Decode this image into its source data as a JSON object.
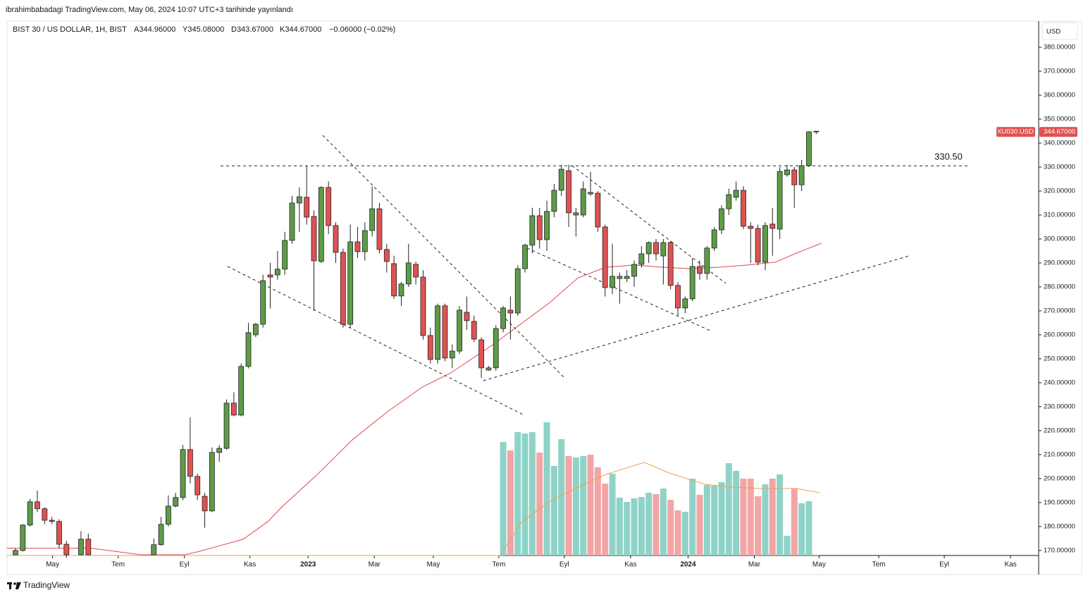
{
  "header": {
    "published": "ibrahimbabadagi TradingView.com, May 06, 2024 10:07 UTC+3 tarihinde yayınlandı",
    "symbol": "BIST 30 / US DOLLAR, 1H, BIST",
    "open_label": "A344.96000",
    "high_label": "Y345.08000",
    "low_label": "D343.67000",
    "close_label": "K344.67000",
    "change_label": "−0.06000 (−0.02%)",
    "currency": "USD"
  },
  "footer_brand": "TradingView",
  "chart_data": {
    "type": "candlestick",
    "up_color": "#5e9b47",
    "down_color": "#e05252",
    "wick_color": "#222222",
    "x": [
      0,
      1,
      2,
      3,
      4,
      5,
      6,
      7,
      9,
      10,
      19,
      20,
      21,
      22,
      23,
      24,
      25,
      26,
      27,
      28,
      29,
      30,
      31,
      32,
      33,
      34,
      35,
      36,
      37,
      38,
      39,
      40,
      41,
      42,
      43,
      44,
      45,
      46,
      47,
      48,
      49,
      50,
      51,
      52,
      53,
      54,
      55,
      56,
      57,
      58,
      59,
      60,
      61,
      62,
      63,
      64,
      65,
      66,
      67,
      68,
      69,
      70,
      71,
      72,
      73,
      74,
      75,
      76,
      77,
      78,
      79,
      80,
      81,
      82,
      83,
      84,
      85,
      86,
      87,
      88,
      89,
      90,
      91,
      92,
      93,
      94,
      95,
      96,
      97,
      98,
      99,
      100,
      101,
      102,
      103,
      104,
      105,
      106,
      107,
      108,
      109,
      110
    ],
    "open": [
      168.2,
      170,
      180.6,
      190.3,
      187.4,
      182.6,
      182.1,
      172.6,
      168.2,
      174.7,
      168.2,
      172.4,
      180.9,
      188.5,
      192.1,
      212.1,
      200.9,
      192.6,
      186.5,
      210.9,
      212.6,
      231.5,
      226.5,
      246.8,
      260,
      264.4,
      285,
      285,
      287.4,
      299.4,
      315,
      317.4,
      309.4,
      290.6,
      321.5,
      305.6,
      294.4,
      264.4,
      298.8,
      294.7,
      303.5,
      312.6,
      295.6,
      289.7,
      276.2,
      281.2,
      289.4,
      284.1,
      259.7,
      249.7,
      272.1,
      250.3,
      253.2,
      269.4,
      265.6,
      257.9,
      245.3,
      246.2,
      262.6,
      270.3,
      269.1,
      287.6,
      297.4,
      309.7,
      299.7,
      311.5,
      320.3,
      328.5,
      310,
      310,
      319.4,
      319.1,
      305,
      279.7,
      283.5,
      283.5,
      284.4,
      289.4,
      293.8,
      298.5,
      292.9,
      298.5,
      280.6,
      271.2,
      275,
      288.5,
      285.6,
      296.2,
      303.8,
      312.6,
      317.4,
      320.3,
      305.3,
      304.4,
      290.3,
      306.2,
      304.1,
      326.8,
      328.8,
      322.6,
      330.6,
      344.96
    ],
    "high": [
      171,
      181,
      191.5,
      195,
      188,
      184,
      183,
      174,
      178,
      177,
      175,
      184,
      193,
      194,
      214,
      225.5,
      202,
      194,
      213,
      214,
      233,
      236,
      248,
      265,
      265,
      285,
      290,
      295,
      303,
      318,
      321.5,
      330.6,
      312,
      322,
      324,
      307,
      296,
      306,
      305,
      307,
      322,
      315,
      298,
      293,
      282,
      298,
      290.5,
      287,
      263,
      273,
      273,
      256,
      272,
      276,
      268,
      259,
      247,
      264,
      272,
      276,
      289,
      298,
      313,
      313,
      316,
      323,
      331,
      331,
      313,
      324,
      328,
      320,
      306,
      298,
      286,
      287,
      291,
      297,
      299,
      300,
      300,
      299,
      282,
      276,
      292,
      291,
      297,
      305,
      314,
      321,
      324,
      322,
      307,
      306,
      307,
      313,
      330,
      331,
      330,
      333,
      345,
      345.08
    ],
    "low": [
      168,
      169.5,
      180,
      186,
      181,
      181,
      171,
      167,
      168,
      168,
      168,
      172,
      180,
      188,
      191,
      198,
      191,
      179.5,
      186,
      207,
      212,
      226,
      226,
      246,
      259,
      263,
      271,
      283,
      285,
      298,
      303,
      306,
      270,
      290,
      302,
      290,
      263,
      263,
      292,
      291,
      301,
      294,
      286,
      275,
      272,
      280,
      281,
      258,
      248,
      248,
      249,
      246,
      252,
      262,
      257,
      242,
      245,
      245,
      261,
      258,
      268,
      286,
      294,
      296,
      295,
      309,
      318,
      305,
      301,
      309,
      318,
      303,
      276,
      277,
      273,
      282,
      280,
      288,
      290,
      291,
      281,
      279,
      268,
      269,
      274,
      283,
      283,
      295,
      302,
      310,
      316,
      304,
      290,
      289,
      287,
      293,
      300,
      326,
      313,
      320,
      330,
      343.67
    ],
    "close": [
      170,
      180.6,
      190.3,
      187.4,
      182.6,
      182.1,
      172.6,
      168.2,
      174.7,
      168.2,
      172.4,
      180.9,
      188.5,
      192.1,
      212.1,
      200.9,
      193.2,
      186.5,
      210.9,
      212.6,
      231.5,
      226.5,
      246.8,
      260.9,
      264.4,
      282.6,
      284.1,
      287.4,
      299.4,
      315,
      317.6,
      309.1,
      290.9,
      321.5,
      305.6,
      294.4,
      264.4,
      298.8,
      294.7,
      303.5,
      312.6,
      295.6,
      290.6,
      276.2,
      281.2,
      290,
      284.1,
      259.7,
      249.7,
      272.1,
      250.3,
      253.2,
      270.3,
      265.9,
      258.2,
      246.2,
      246.2,
      262.6,
      271.2,
      269.1,
      287.6,
      297.4,
      309.7,
      299.7,
      311.5,
      320.3,
      329.1,
      310.9,
      310.9,
      320.9,
      318.8,
      305,
      279.7,
      284.4,
      284.4,
      284.4,
      289.4,
      293.8,
      298.5,
      293.8,
      298.5,
      280.6,
      271.2,
      275,
      288.5,
      285.6,
      296.2,
      303.8,
      312.6,
      318.5,
      320.3,
      305.3,
      304.4,
      290.3,
      305.6,
      304.4,
      328.2,
      328.8,
      322.6,
      330.6,
      344.7,
      344.67
    ],
    "ma": {
      "color": "#e0474c",
      "x": [
        -1.2,
        10.5,
        17.2,
        23.2,
        25,
        27.9,
        31.3,
        34.7,
        36.6,
        41.4,
        46.3,
        51.1,
        55.9,
        59.8,
        65.6,
        69.5,
        73.4,
        77.3,
        81.1,
        85,
        88.9,
        92.7,
        96.6,
        100.5,
        104.4,
        107.3,
        110.7
      ],
      "values": [
        170.9,
        170.9,
        168.2,
        168.2,
        169.4,
        171.8,
        174.7,
        182.1,
        188.2,
        201.5,
        216.2,
        227.9,
        238.2,
        244.1,
        255.9,
        264.7,
        273.5,
        283.8,
        288.2,
        289.1,
        288.2,
        287.6,
        288.2,
        289.1,
        290.3,
        294.1,
        298.2
      ]
    },
    "volume": {
      "up_color": "#8fd3c8",
      "down_color": "#f2a5a5",
      "ylim": [
        0,
        200
      ],
      "x": [
        67,
        68,
        69,
        70,
        71,
        72,
        73,
        74,
        75,
        76,
        77,
        78,
        79,
        80,
        81,
        82,
        83,
        84,
        85,
        86,
        87,
        88,
        89,
        90,
        91,
        92,
        93,
        94,
        95,
        96,
        97,
        98,
        99,
        100,
        101,
        102,
        103,
        104,
        105,
        106,
        107,
        108,
        109,
        110
      ],
      "values": [
        161,
        149,
        175,
        173,
        175,
        146,
        189,
        127,
        165,
        141,
        139,
        141,
        143,
        125,
        102,
        116,
        82,
        76,
        81,
        83,
        89,
        87,
        95,
        79,
        64,
        62,
        109,
        86,
        100,
        99,
        104,
        131,
        120,
        109,
        109,
        84,
        101,
        109,
        115,
        28,
        95,
        74,
        77,
        1
      ],
      "ma": {
        "color": "#f0a050",
        "x": [
          -1.2,
          66.6,
          69.5,
          73.4,
          77.3,
          81.1,
          86.4,
          89.8,
          94.7,
          98.5,
          102.4,
          107.3,
          110.5
        ],
        "values": [
          0,
          0,
          47,
          77,
          97,
          115,
          132,
          117,
          101,
          97,
          95,
          95,
          89
        ]
      }
    },
    "hline": {
      "value": 330.5,
      "label": "330.50"
    },
    "last_price": {
      "value": 344.67,
      "label": "344.67000"
    },
    "symbol_tag": "XU030.USD",
    "xlim": [
      -1.16,
      140.47
    ],
    "ylim": [
      167.9,
      390.9
    ],
    "xticks": [
      {
        "value": 5.1,
        "label": "May"
      },
      {
        "value": 14.1,
        "label": "Tem"
      },
      {
        "value": 23.2,
        "label": "Eyl"
      },
      {
        "value": 32.2,
        "label": "Kas"
      },
      {
        "value": 40.2,
        "label": "2023"
      },
      {
        "value": 49.3,
        "label": "Mar"
      },
      {
        "value": 57.4,
        "label": "May"
      },
      {
        "value": 66.4,
        "label": "Tem"
      },
      {
        "value": 75.4,
        "label": "Eyl"
      },
      {
        "value": 84.5,
        "label": "Kas"
      },
      {
        "value": 92.4,
        "label": "2024"
      },
      {
        "value": 101.5,
        "label": "Mar"
      },
      {
        "value": 110.4,
        "label": "May"
      },
      {
        "value": 118.6,
        "label": "Tem"
      },
      {
        "value": 127.6,
        "label": "Eyl"
      },
      {
        "value": 136.7,
        "label": "Kas"
      }
    ],
    "yticks": [
      {
        "value": 170,
        "label": "170.00000"
      },
      {
        "value": 180,
        "label": "180.00000"
      },
      {
        "value": 190,
        "label": "190.00000"
      },
      {
        "value": 200,
        "label": "200.00000"
      },
      {
        "value": 210,
        "label": "210.00000"
      },
      {
        "value": 220,
        "label": "220.00000"
      },
      {
        "value": 230,
        "label": "230.00000"
      },
      {
        "value": 240,
        "label": "240.00000"
      },
      {
        "value": 250,
        "label": "250.00000"
      },
      {
        "value": 260,
        "label": "260.00000"
      },
      {
        "value": 270,
        "label": "270.00000"
      },
      {
        "value": 280,
        "label": "280.00000"
      },
      {
        "value": 290,
        "label": "290.00000"
      },
      {
        "value": 300,
        "label": "300.00000"
      },
      {
        "value": 310,
        "label": "310.00000"
      },
      {
        "value": 320,
        "label": "320.00000"
      },
      {
        "value": 330,
        "label": "330.00000"
      },
      {
        "value": 340,
        "label": "340.00000"
      },
      {
        "value": 350,
        "label": "350.00000"
      },
      {
        "value": 360,
        "label": "360.00000"
      },
      {
        "value": 370,
        "label": "370.00000"
      },
      {
        "value": 380,
        "label": "380.00000"
      }
    ]
  }
}
